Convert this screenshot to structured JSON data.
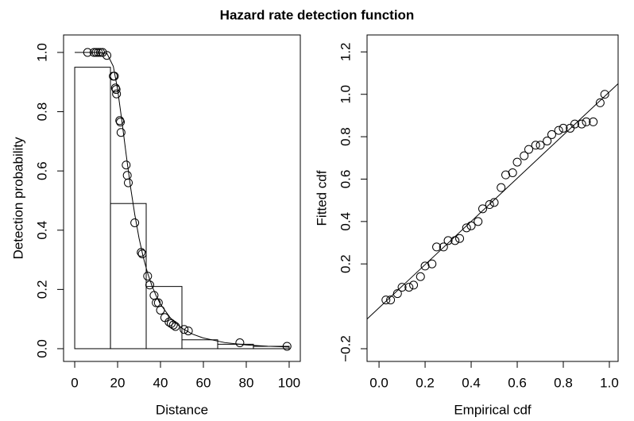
{
  "title": "Hazard rate detection function",
  "chart_data": [
    {
      "type": "histogram",
      "xlabel": "Distance",
      "ylabel": "Detection probability",
      "xlim": [
        -5.2,
        105.2
      ],
      "ylim": [
        -0.043,
        1.059
      ],
      "xticks": [
        0,
        20,
        40,
        60,
        80,
        100
      ],
      "yticks": [
        {
          "value": 0,
          "label": "0.0"
        },
        {
          "value": 0.2,
          "label": "0.2"
        },
        {
          "value": 0.4,
          "label": "0.4"
        },
        {
          "value": 0.6,
          "label": "0.6"
        },
        {
          "value": 0.8,
          "label": "0.8"
        },
        {
          "value": 1.0,
          "label": "1.0"
        }
      ],
      "bins": [
        0,
        16.67,
        33.33,
        50,
        66.67,
        83.33,
        100
      ],
      "values": [
        0.95,
        0.49,
        0.21,
        0.03,
        0.015,
        0.008
      ],
      "curve": {
        "x": [
          0,
          5,
          10,
          15,
          18,
          20,
          22,
          24,
          26,
          28,
          30,
          32,
          34,
          36,
          38,
          40,
          45,
          50,
          55,
          60,
          70,
          80,
          90,
          100
        ],
        "y": [
          1,
          1,
          1,
          0.997,
          0.953,
          0.875,
          0.769,
          0.655,
          0.547,
          0.453,
          0.373,
          0.308,
          0.255,
          0.213,
          0.178,
          0.15,
          0.1,
          0.069,
          0.049,
          0.036,
          0.0205,
          0.0126,
          0.0082,
          0.0056
        ]
      },
      "points": {
        "x": [
          6,
          9,
          10,
          11,
          12,
          13,
          15,
          18,
          18.5,
          19,
          19.3,
          19.5,
          21,
          21.3,
          21.6,
          24,
          24.5,
          25,
          28,
          31,
          31.5,
          34,
          35,
          37,
          38,
          39,
          40,
          42,
          44,
          45,
          46,
          47,
          51,
          53,
          77,
          99
        ],
        "y": [
          1,
          1,
          1,
          1,
          1,
          1,
          0.99,
          0.92,
          0.92,
          0.88,
          0.875,
          0.86,
          0.77,
          0.765,
          0.73,
          0.62,
          0.585,
          0.56,
          0.425,
          0.325,
          0.32,
          0.245,
          0.215,
          0.18,
          0.155,
          0.155,
          0.13,
          0.105,
          0.09,
          0.085,
          0.08,
          0.075,
          0.065,
          0.06,
          0.02,
          0.008
        ]
      }
    },
    {
      "type": "scatter",
      "xlabel": "Empirical cdf",
      "ylabel": "Fitted cdf",
      "xlim": [
        -0.052,
        1.038
      ],
      "ylim": [
        -0.26,
        1.28
      ],
      "xticks": [
        {
          "value": 0,
          "label": "0.0"
        },
        {
          "value": 0.2,
          "label": "0.2"
        },
        {
          "value": 0.4,
          "label": "0.4"
        },
        {
          "value": 0.6,
          "label": "0.6"
        },
        {
          "value": 0.8,
          "label": "0.8"
        },
        {
          "value": 1.0,
          "label": "1.0"
        }
      ],
      "yticks": [
        {
          "value": -0.2,
          "label": "−0.2"
        },
        {
          "value": 0.2,
          "label": "0.2"
        },
        {
          "value": 0.4,
          "label": "0.4"
        },
        {
          "value": 0.6,
          "label": "0.6"
        },
        {
          "value": 0.8,
          "label": "0.8"
        },
        {
          "value": 1.0,
          "label": "1.0"
        },
        {
          "value": 1.2,
          "label": "1.2"
        }
      ],
      "curve": {
        "x": [
          -0.052,
          1.038
        ],
        "y": [
          -0.06,
          1.05
        ]
      },
      "points": {
        "x": [
          0.03,
          0.05,
          0.08,
          0.1,
          0.13,
          0.15,
          0.18,
          0.2,
          0.23,
          0.25,
          0.28,
          0.3,
          0.33,
          0.35,
          0.38,
          0.4,
          0.43,
          0.45,
          0.48,
          0.5,
          0.53,
          0.55,
          0.58,
          0.6,
          0.63,
          0.65,
          0.68,
          0.7,
          0.73,
          0.75,
          0.78,
          0.8,
          0.83,
          0.85,
          0.88,
          0.9,
          0.93,
          0.96,
          0.98
        ],
        "y": [
          0.03,
          0.03,
          0.06,
          0.09,
          0.09,
          0.1,
          0.14,
          0.19,
          0.2,
          0.28,
          0.28,
          0.31,
          0.31,
          0.32,
          0.37,
          0.38,
          0.4,
          0.46,
          0.48,
          0.49,
          0.56,
          0.62,
          0.63,
          0.68,
          0.71,
          0.74,
          0.76,
          0.76,
          0.78,
          0.81,
          0.83,
          0.84,
          0.84,
          0.86,
          0.86,
          0.87,
          0.87,
          0.96,
          1.0
        ]
      }
    }
  ]
}
